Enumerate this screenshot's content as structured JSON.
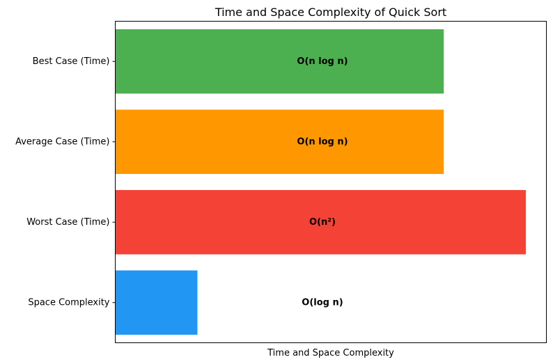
{
  "chart_data": {
    "type": "bar",
    "orientation": "horizontal",
    "title": "Time and Space Complexity of Quick Sort",
    "xlabel": "Time and Space Complexity",
    "ylabel": "",
    "categories": [
      "Space Complexity",
      "Worst Case (Time)",
      "Average Case (Time)",
      "Best Case (Time)"
    ],
    "values": [
      1,
      5,
      4,
      4
    ],
    "xlim": [
      0,
      5.25
    ],
    "x_ticks_visible": false,
    "grid": false,
    "legend": "none",
    "bar_labels": [
      "O(log n)",
      "O(n²)",
      "O(n log n)",
      "O(n log n)"
    ],
    "colors": [
      "#2196F3",
      "#F44336",
      "#FF9800",
      "#4CAF50"
    ]
  }
}
